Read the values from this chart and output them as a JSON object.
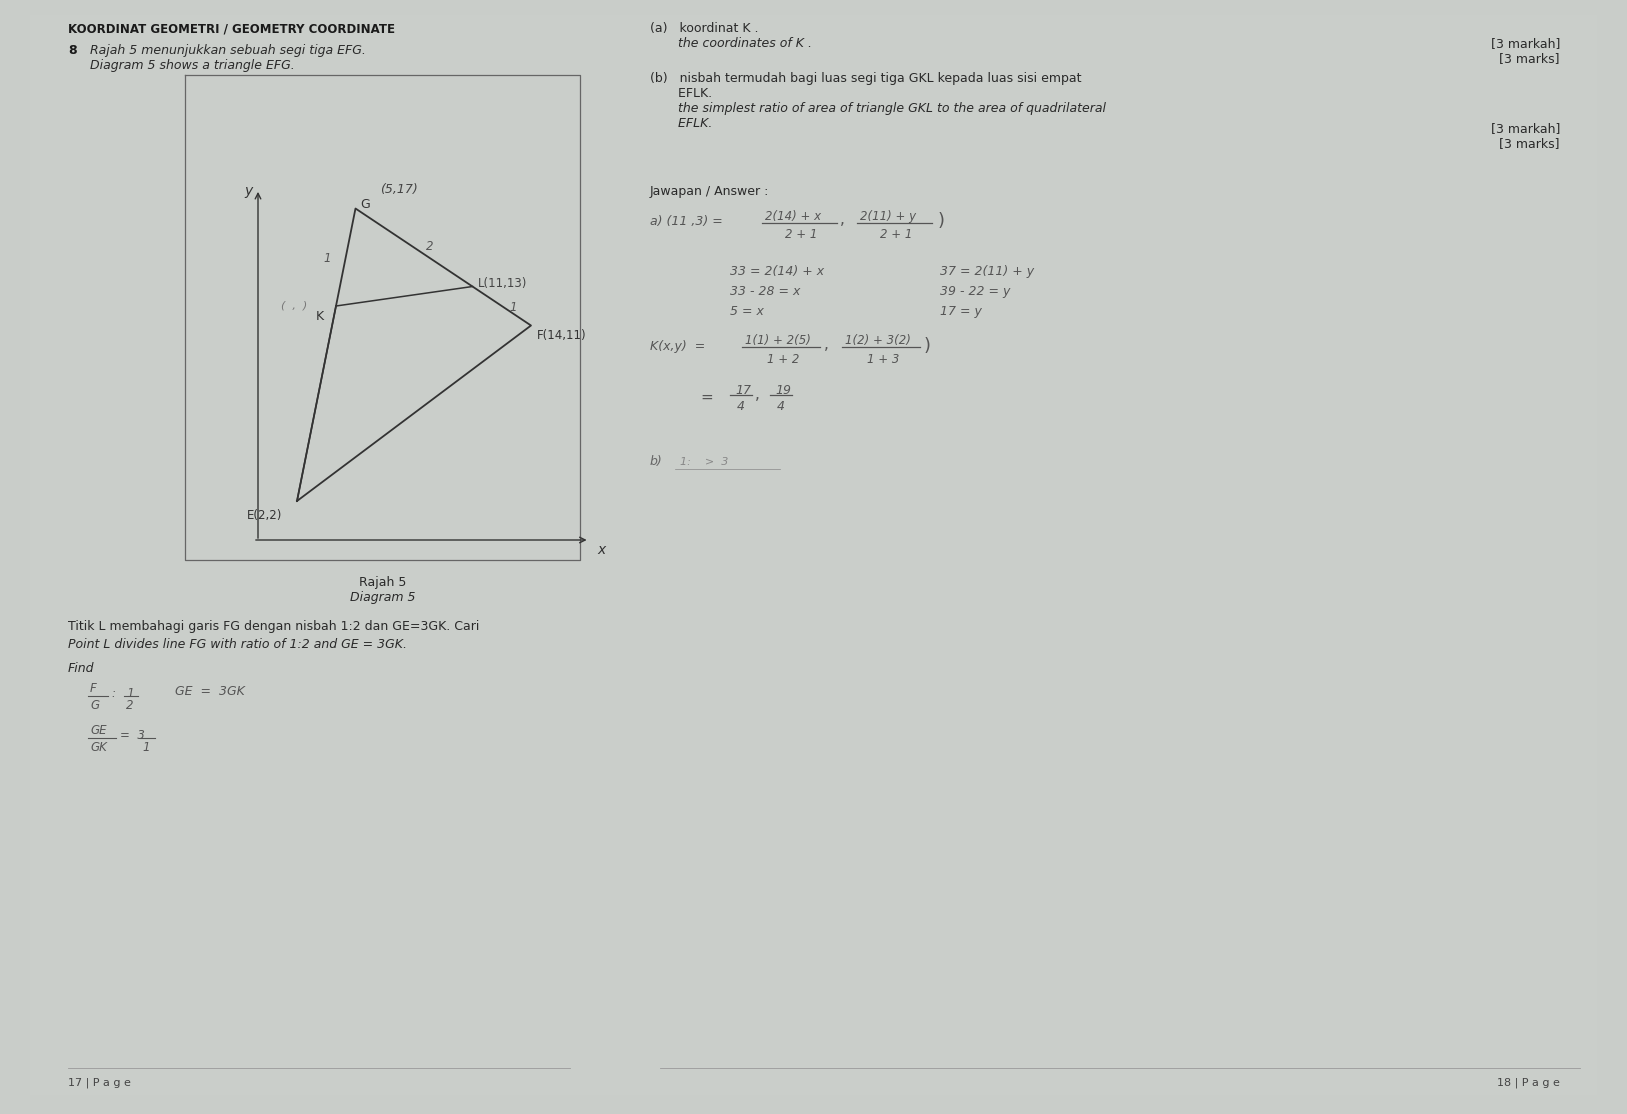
{
  "bg_color": "#c9cdc9",
  "title": "KOORDINAT GEOMETRI / GEOMETRY COORDINATE",
  "question_num": "8",
  "question_malay": "Rajah 5 menunjukkan sebuah segi tiga EFG.",
  "question_english": "Diagram 5 shows a triangle EFG.",
  "E": [
    2,
    2
  ],
  "F": [
    14,
    11
  ],
  "G": [
    5,
    17
  ],
  "diagram_label_malay": "Rajah 5",
  "diagram_label_english": "Diagram 5",
  "titik_text_malay": "Titik L membahagi garis FG dengan nisbah 1:2 dan GE=3GK. Cari",
  "titik_text_english": "Point L divides line FG with ratio of 1:2 and GE = 3GK.",
  "find_text": "Find",
  "part_a_malay": "(a)   koordinat K .",
  "part_a_english": "       the coordinates of K .",
  "marks_a_malay": "[3 markah]",
  "marks_a_english": "[3 marks]",
  "part_b_malay": "(b)   nisbah termudah bagi luas segi tiga GKL kepada luas sisi empat",
  "part_b_malay2": "       EFLK.",
  "part_b_english": "       the simplest ratio of area of triangle GKL to the area of quadrilateral",
  "part_b_english2": "       EFLK.",
  "marks_b_malay": "[3 markah]",
  "marks_b_english": "[3 marks]",
  "answer_label": "Jawapan / Answer :",
  "bottom_left_page": "17 | P a g e",
  "bottom_right_page": "18 | P a g e"
}
